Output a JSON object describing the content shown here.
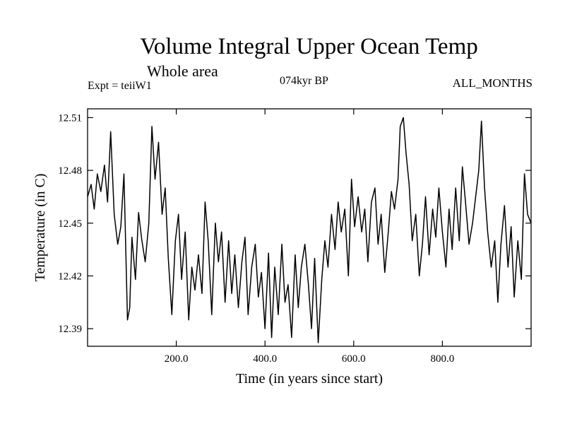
{
  "header": {
    "title": "Volume Integral Upper Ocean Temp",
    "subtitle": "Whole area",
    "experiment": "Expt = teiiW1",
    "period": "074kyr BP",
    "months": "ALL_MONTHS"
  },
  "chart_data": {
    "type": "line",
    "title": "Volume Integral Upper Ocean Temp",
    "subtitle": "Whole area",
    "xlabel": "Time (in years since start)",
    "ylabel": "Temperature (in C)",
    "xlim": [
      0,
      1000
    ],
    "ylim": [
      12.38,
      12.515
    ],
    "x_ticks": [
      200,
      400,
      600,
      800
    ],
    "x_tick_labels": [
      "200.0",
      "400.0",
      "600.0",
      "800.0"
    ],
    "y_ticks": [
      12.39,
      12.42,
      12.45,
      12.48,
      12.51
    ],
    "y_tick_labels": [
      "12.39",
      "12.42",
      "12.45",
      "12.48",
      "12.51"
    ],
    "grid": false,
    "line_color": "#000000",
    "series": [
      {
        "x": [
          0,
          8,
          15,
          22,
          30,
          38,
          45,
          52,
          60,
          68,
          75,
          82,
          90,
          95,
          100,
          108,
          115,
          122,
          130,
          138,
          145,
          152,
          160,
          168,
          175,
          182,
          190,
          198,
          205,
          212,
          220,
          228,
          235,
          242,
          250,
          258,
          265,
          272,
          280,
          288,
          295,
          302,
          310,
          318,
          325,
          332,
          340,
          348,
          355,
          362,
          370,
          378,
          385,
          392,
          400,
          408,
          415,
          422,
          430,
          438,
          445,
          452,
          460,
          468,
          475,
          482,
          490,
          498,
          505,
          512,
          520,
          528,
          535,
          542,
          550,
          558,
          565,
          572,
          580,
          588,
          595,
          602,
          610,
          618,
          625,
          632,
          640,
          648,
          655,
          662,
          670,
          678,
          685,
          692,
          700,
          705,
          712,
          718,
          725,
          732,
          740,
          748,
          755,
          762,
          770,
          778,
          785,
          792,
          800,
          808,
          815,
          822,
          830,
          838,
          845,
          852,
          860,
          868,
          875,
          882,
          888,
          895,
          902,
          910,
          918,
          925,
          932,
          940,
          948,
          955,
          962,
          970,
          978,
          985,
          992,
          1000
        ],
        "y": [
          12.465,
          12.472,
          12.458,
          12.478,
          12.468,
          12.483,
          12.462,
          12.502,
          12.455,
          12.438,
          12.448,
          12.478,
          12.395,
          12.402,
          12.442,
          12.418,
          12.456,
          12.441,
          12.428,
          12.45,
          12.505,
          12.475,
          12.496,
          12.455,
          12.47,
          12.43,
          12.398,
          12.44,
          12.455,
          12.418,
          12.445,
          12.395,
          12.425,
          12.412,
          12.432,
          12.41,
          12.462,
          12.44,
          12.398,
          12.45,
          12.428,
          12.445,
          12.405,
          12.44,
          12.41,
          12.432,
          12.402,
          12.428,
          12.442,
          12.398,
          12.425,
          12.438,
          12.408,
          12.422,
          12.39,
          12.433,
          12.385,
          12.425,
          12.398,
          12.438,
          12.405,
          12.415,
          12.385,
          12.432,
          12.402,
          12.425,
          12.438,
          12.415,
          12.39,
          12.43,
          12.382,
          12.418,
          12.44,
          12.425,
          12.455,
          12.435,
          12.462,
          12.445,
          12.458,
          12.42,
          12.475,
          12.448,
          12.465,
          12.445,
          12.458,
          12.428,
          12.462,
          12.47,
          12.438,
          12.455,
          12.422,
          12.445,
          12.468,
          12.458,
          12.475,
          12.505,
          12.51,
          12.49,
          12.472,
          12.44,
          12.455,
          12.42,
          12.438,
          12.465,
          12.432,
          12.458,
          12.442,
          12.47,
          12.445,
          12.425,
          12.458,
          12.435,
          12.47,
          12.44,
          12.482,
          12.462,
          12.438,
          12.45,
          12.465,
          12.48,
          12.508,
          12.47,
          12.445,
          12.425,
          12.44,
          12.405,
          12.438,
          12.46,
          12.425,
          12.448,
          12.408,
          12.44,
          12.418,
          12.478,
          12.455,
          12.45
        ]
      }
    ]
  }
}
